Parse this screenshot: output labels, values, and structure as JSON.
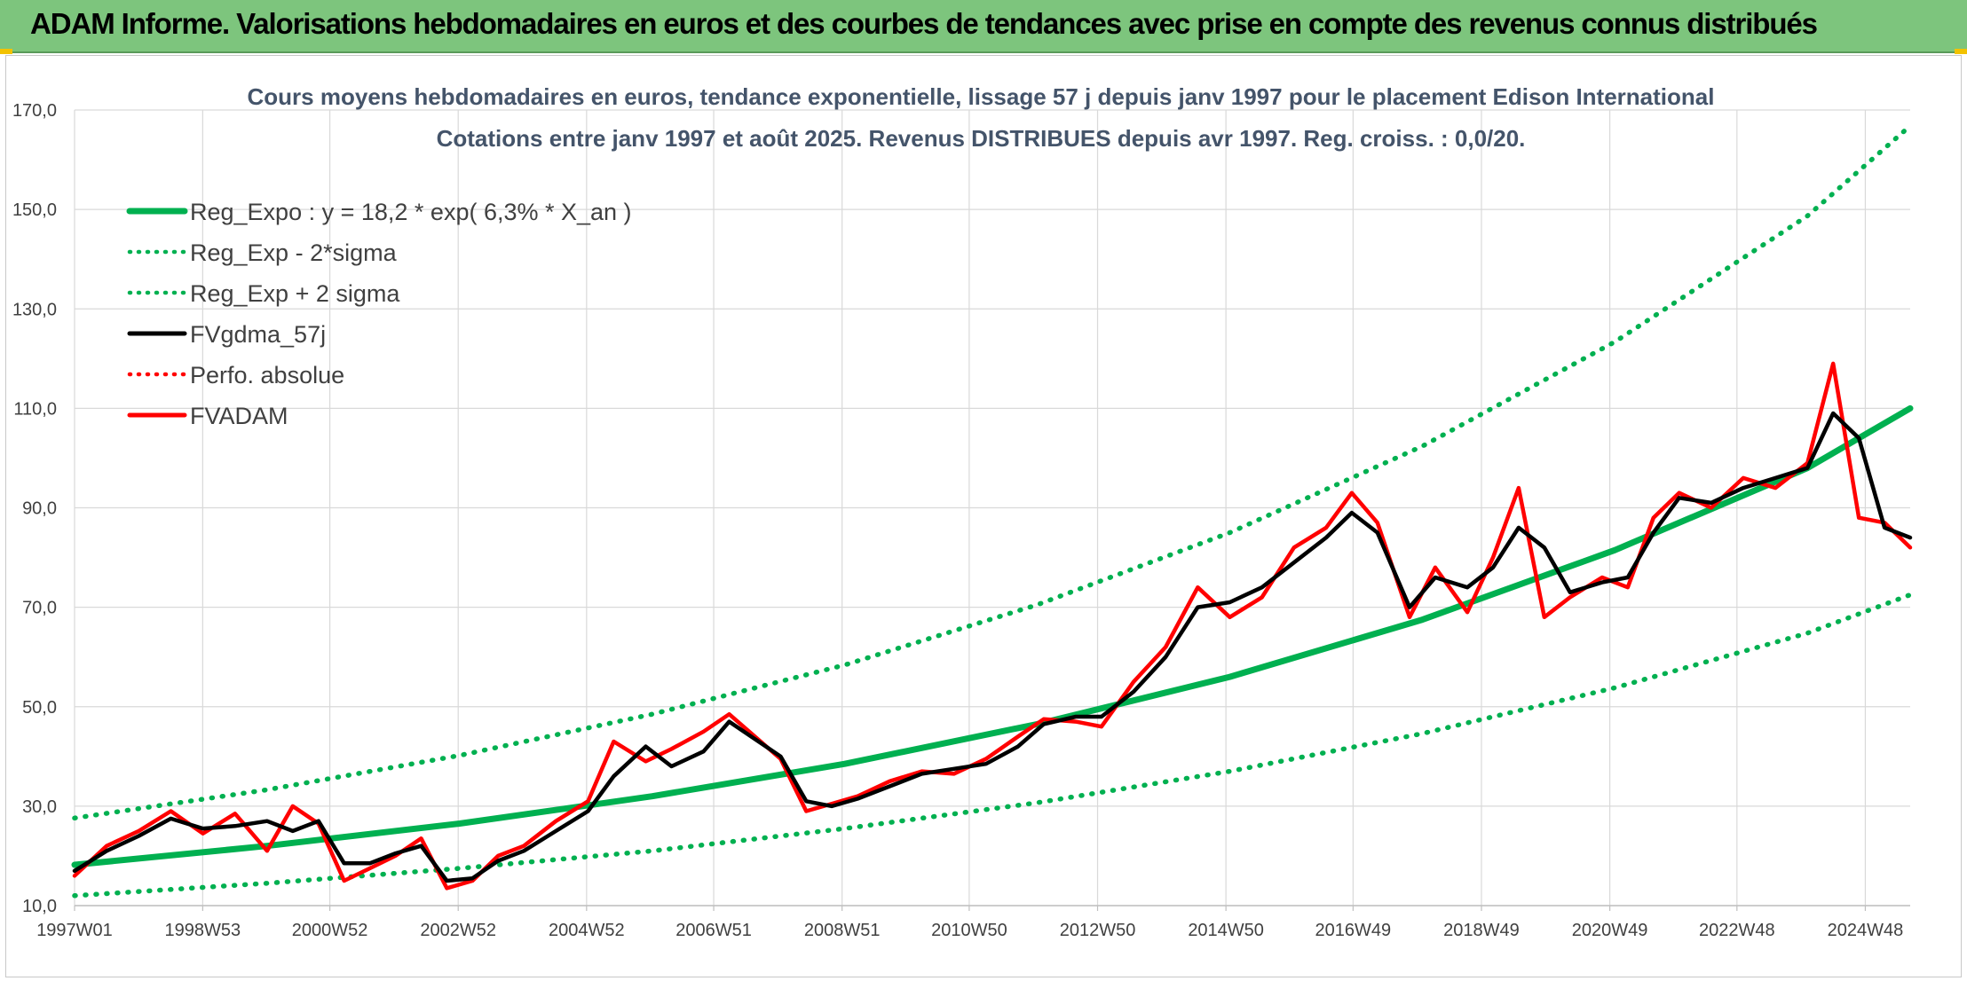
{
  "header": {
    "title": "ADAM Informe. Valorisations hebdomadaires en euros et des courbes de tendances avec prise en compte des revenus connus distribués"
  },
  "colors": {
    "banner": "#7dc57d",
    "trend": "#00b050",
    "smooth": "#000000",
    "adam": "#ff0000",
    "grid": "#d9d9d9"
  },
  "chart_data": {
    "type": "line",
    "title": "Cours moyens hebdomadaires en euros, tendance exponentielle, lissage 57 j depuis janv 1997 pour le placement Edison International",
    "subtitle": "Cotations entre janv 1997 et août 2025. Revenus DISTRIBUES depuis avr 1997. Reg. croiss. : 0,0/20.",
    "ylim": [
      10,
      170
    ],
    "y_ticks": [
      "170,0",
      "150,0",
      "130,0",
      "110,0",
      "90,0",
      "70,0",
      "50,0",
      "30,0",
      "10,0"
    ],
    "x_range": [
      "1997W01",
      "2025W33"
    ],
    "x_ticks": [
      "1997W01",
      "1998W53",
      "2000W52",
      "2002W52",
      "2004W52",
      "2006W51",
      "2008W51",
      "2010W50",
      "2012W50",
      "2014W50",
      "2016W49",
      "2018W49",
      "2020W49",
      "2022W48",
      "2024W48"
    ],
    "grid": true,
    "legend_position": "top-left",
    "legend": [
      {
        "label": "Reg_Expo : y = 18,2 * exp( 6,3% *  X_an )",
        "color": "#00b050",
        "style": "solid"
      },
      {
        "label": "Reg_Exp - 2*sigma",
        "color": "#00b050",
        "style": "dotted"
      },
      {
        "label": "Reg_Exp + 2 sigma",
        "color": "#00b050",
        "style": "dotted"
      },
      {
        "label": "FVgdma_57j",
        "color": "#000000",
        "style": "solid"
      },
      {
        "label": "Perfo. absolue",
        "color": "#ff0000",
        "style": "dotted"
      },
      {
        "label": "FVADAM",
        "color": "#ff0000",
        "style": "solid"
      }
    ],
    "series": [
      {
        "name": "Reg_Expo : y = 18,2 * exp( 6,3% *  X_an )",
        "x_years": [
          1997.0,
          2000.0,
          2003.0,
          2006.0,
          2009.0,
          2012.0,
          2015.0,
          2018.0,
          2021.0,
          2024.0,
          2025.6
        ],
        "values": [
          18.2,
          22.0,
          26.5,
          32.0,
          38.5,
          46.5,
          56.0,
          67.5,
          81.5,
          98.0,
          110.0
        ]
      },
      {
        "name": "Reg_Exp - 2*sigma",
        "x_years": [
          1997.0,
          2000.0,
          2003.0,
          2006.0,
          2009.0,
          2012.0,
          2015.0,
          2018.0,
          2021.0,
          2024.0,
          2025.6
        ],
        "values": [
          12.0,
          14.5,
          17.5,
          21.0,
          25.5,
          30.7,
          37.0,
          44.6,
          53.8,
          64.8,
          72.5
        ]
      },
      {
        "name": "Reg_Exp + 2 sigma",
        "x_years": [
          1997.0,
          2000.0,
          2003.0,
          2006.0,
          2009.0,
          2012.0,
          2015.0,
          2018.0,
          2021.0,
          2024.0,
          2025.6
        ],
        "values": [
          27.6,
          33.3,
          40.2,
          48.5,
          58.4,
          70.5,
          85.0,
          102.4,
          123.4,
          148.7,
          166.8
        ]
      },
      {
        "name": "FVgdma_57j",
        "x_years": [
          1997.0,
          1997.5,
          1998.0,
          1998.5,
          1999.0,
          1999.5,
          2000.0,
          2000.4,
          2000.8,
          2001.2,
          2001.6,
          2002.0,
          2002.4,
          2002.8,
          2003.2,
          2003.6,
          2004.0,
          2004.5,
          2005.0,
          2005.4,
          2005.9,
          2006.3,
          2006.8,
          2007.2,
          2007.6,
          2008.0,
          2008.4,
          2008.8,
          2009.2,
          2009.7,
          2010.2,
          2010.7,
          2011.2,
          2011.7,
          2012.1,
          2012.6,
          2013.0,
          2013.5,
          2014.0,
          2014.5,
          2015.0,
          2015.5,
          2016.0,
          2016.5,
          2016.9,
          2017.3,
          2017.8,
          2018.2,
          2018.7,
          2019.1,
          2019.5,
          2019.9,
          2020.3,
          2020.8,
          2021.2,
          2021.6,
          2022.0,
          2022.5,
          2023.0,
          2023.5,
          2024.0,
          2024.4,
          2024.8,
          2025.2,
          2025.6
        ],
        "values": [
          17.0,
          21.0,
          24.0,
          27.5,
          25.5,
          26.0,
          27.0,
          25.0,
          27.0,
          18.5,
          18.5,
          20.5,
          22.0,
          15.0,
          15.5,
          19.0,
          21.0,
          25.0,
          29.0,
          36.0,
          42.0,
          38.0,
          41.0,
          47.0,
          43.5,
          40.0,
          31.0,
          30.0,
          31.5,
          34.0,
          36.5,
          37.5,
          38.5,
          42.0,
          46.5,
          48.0,
          48.0,
          53.0,
          60.0,
          70.0,
          71.0,
          74.0,
          79.0,
          84.0,
          89.0,
          85.0,
          70.0,
          76.0,
          74.0,
          78.0,
          86.0,
          82.0,
          73.0,
          75.0,
          76.0,
          85.0,
          92.0,
          91.0,
          94.0,
          96.0,
          98.0,
          109.0,
          104.0,
          86.0,
          84.0
        ]
      },
      {
        "name": "FVADAM",
        "x_years": [
          1997.0,
          1997.5,
          1998.0,
          1998.5,
          1999.0,
          1999.5,
          2000.0,
          2000.4,
          2000.8,
          2001.2,
          2001.6,
          2002.0,
          2002.4,
          2002.8,
          2003.2,
          2003.6,
          2004.0,
          2004.5,
          2005.0,
          2005.4,
          2005.9,
          2006.3,
          2006.8,
          2007.2,
          2007.6,
          2008.0,
          2008.4,
          2008.8,
          2009.2,
          2009.7,
          2010.2,
          2010.7,
          2011.2,
          2011.7,
          2012.1,
          2012.6,
          2013.0,
          2013.5,
          2014.0,
          2014.5,
          2015.0,
          2015.5,
          2016.0,
          2016.5,
          2016.9,
          2017.3,
          2017.8,
          2018.2,
          2018.7,
          2019.1,
          2019.5,
          2019.9,
          2020.3,
          2020.8,
          2021.2,
          2021.6,
          2022.0,
          2022.5,
          2023.0,
          2023.5,
          2024.0,
          2024.4,
          2024.8,
          2025.2,
          2025.6
        ],
        "values": [
          16.0,
          22.0,
          25.0,
          29.0,
          24.5,
          28.5,
          21.0,
          30.0,
          26.5,
          15.0,
          17.5,
          20.0,
          23.5,
          13.5,
          15.0,
          20.0,
          22.0,
          27.0,
          31.0,
          43.0,
          39.0,
          41.5,
          45.0,
          48.5,
          44.0,
          39.5,
          29.0,
          30.5,
          32.0,
          35.0,
          37.0,
          36.5,
          39.5,
          44.0,
          47.5,
          47.0,
          46.0,
          55.0,
          62.0,
          74.0,
          68.0,
          72.0,
          82.0,
          86.0,
          93.0,
          87.0,
          68.0,
          78.0,
          69.0,
          80.0,
          94.0,
          68.0,
          72.0,
          76.0,
          74.0,
          88.0,
          93.0,
          90.0,
          96.0,
          94.0,
          99.0,
          119.0,
          88.0,
          87.0,
          82.0
        ]
      }
    ]
  }
}
